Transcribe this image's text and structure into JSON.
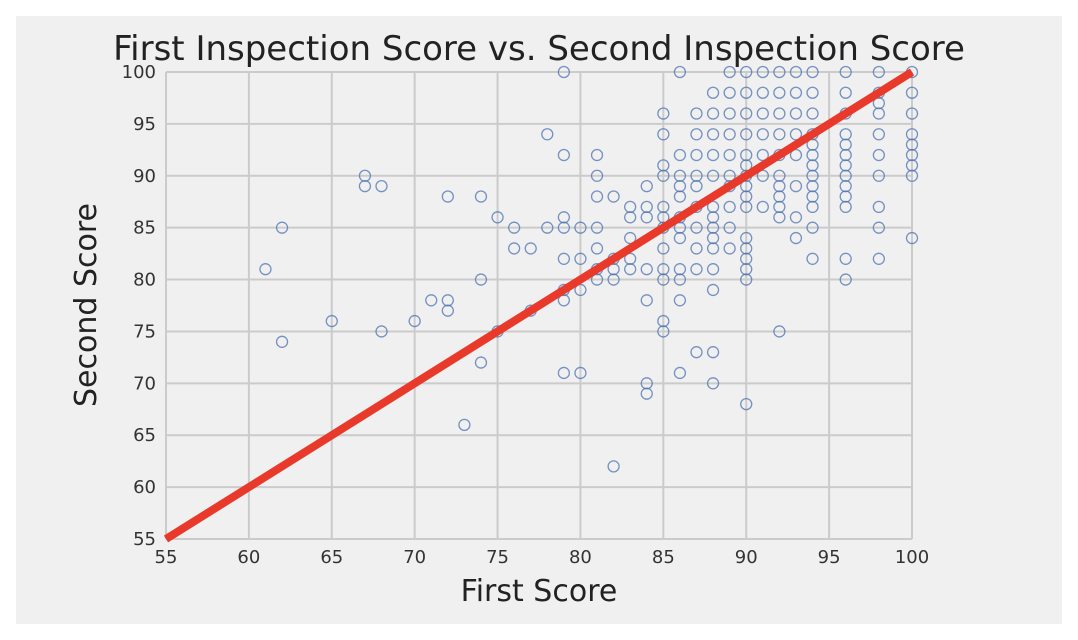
{
  "chart_data": {
    "type": "scatter",
    "title": "First Inspection Score vs. Second Inspection Score",
    "xlabel": "First Score",
    "ylabel": "Second Score",
    "xlim": [
      55,
      100
    ],
    "ylim": [
      55,
      100
    ],
    "xticks": [
      "55",
      "60",
      "65",
      "70",
      "75",
      "80",
      "85",
      "90",
      "95",
      "100"
    ],
    "yticks": [
      "55",
      "60",
      "65",
      "70",
      "75",
      "80",
      "85",
      "90",
      "95",
      "100"
    ],
    "grid": true,
    "marker_color": "#4c72b0",
    "line_color": "#e8392a",
    "background_color": "#f0f0f0",
    "reference_line": {
      "x": [
        55,
        100
      ],
      "y": [
        55,
        100
      ]
    },
    "series": [
      {
        "points": [
          [
            61,
            81
          ],
          [
            62,
            85
          ],
          [
            62,
            74
          ],
          [
            65,
            76
          ],
          [
            67,
            90
          ],
          [
            67,
            89
          ],
          [
            68,
            89
          ],
          [
            68,
            75
          ],
          [
            70,
            76
          ],
          [
            71,
            78
          ],
          [
            72,
            78
          ],
          [
            72,
            77
          ],
          [
            72,
            88
          ],
          [
            73,
            66
          ],
          [
            74,
            88
          ],
          [
            74,
            80
          ],
          [
            74,
            72
          ],
          [
            75,
            86
          ],
          [
            75,
            75
          ],
          [
            76,
            85
          ],
          [
            76,
            83
          ],
          [
            77,
            83
          ],
          [
            77,
            77
          ],
          [
            78,
            94
          ],
          [
            78,
            85
          ],
          [
            79,
            100
          ],
          [
            79,
            92
          ],
          [
            79,
            86
          ],
          [
            79,
            85
          ],
          [
            79,
            82
          ],
          [
            79,
            79
          ],
          [
            79,
            78
          ],
          [
            79,
            71
          ],
          [
            80,
            85
          ],
          [
            80,
            82
          ],
          [
            80,
            79
          ],
          [
            80,
            71
          ],
          [
            81,
            92
          ],
          [
            81,
            90
          ],
          [
            81,
            88
          ],
          [
            81,
            85
          ],
          [
            81,
            83
          ],
          [
            81,
            81
          ],
          [
            81,
            80
          ],
          [
            82,
            88
          ],
          [
            82,
            82
          ],
          [
            82,
            81
          ],
          [
            82,
            80
          ],
          [
            82,
            62
          ],
          [
            83,
            87
          ],
          [
            83,
            86
          ],
          [
            83,
            84
          ],
          [
            83,
            82
          ],
          [
            83,
            81
          ],
          [
            84,
            89
          ],
          [
            84,
            87
          ],
          [
            84,
            86
          ],
          [
            84,
            81
          ],
          [
            84,
            78
          ],
          [
            84,
            70
          ],
          [
            84,
            69
          ],
          [
            85,
            96
          ],
          [
            85,
            94
          ],
          [
            85,
            91
          ],
          [
            85,
            90
          ],
          [
            85,
            87
          ],
          [
            85,
            86
          ],
          [
            85,
            85
          ],
          [
            85,
            83
          ],
          [
            85,
            81
          ],
          [
            85,
            80
          ],
          [
            85,
            76
          ],
          [
            85,
            75
          ],
          [
            86,
            100
          ],
          [
            86,
            92
          ],
          [
            86,
            90
          ],
          [
            86,
            89
          ],
          [
            86,
            88
          ],
          [
            86,
            86
          ],
          [
            86,
            85
          ],
          [
            86,
            84
          ],
          [
            86,
            81
          ],
          [
            86,
            80
          ],
          [
            86,
            78
          ],
          [
            86,
            71
          ],
          [
            87,
            96
          ],
          [
            87,
            94
          ],
          [
            87,
            92
          ],
          [
            87,
            90
          ],
          [
            87,
            89
          ],
          [
            87,
            87
          ],
          [
            87,
            85
          ],
          [
            87,
            83
          ],
          [
            87,
            81
          ],
          [
            87,
            73
          ],
          [
            88,
            98
          ],
          [
            88,
            96
          ],
          [
            88,
            94
          ],
          [
            88,
            92
          ],
          [
            88,
            90
          ],
          [
            88,
            87
          ],
          [
            88,
            86
          ],
          [
            88,
            85
          ],
          [
            88,
            84
          ],
          [
            88,
            83
          ],
          [
            88,
            81
          ],
          [
            88,
            79
          ],
          [
            88,
            73
          ],
          [
            88,
            70
          ],
          [
            89,
            100
          ],
          [
            89,
            98
          ],
          [
            89,
            96
          ],
          [
            89,
            94
          ],
          [
            89,
            92
          ],
          [
            89,
            90
          ],
          [
            89,
            89
          ],
          [
            89,
            87
          ],
          [
            89,
            85
          ],
          [
            89,
            83
          ],
          [
            90,
            100
          ],
          [
            90,
            98
          ],
          [
            90,
            96
          ],
          [
            90,
            94
          ],
          [
            90,
            92
          ],
          [
            90,
            91
          ],
          [
            90,
            90
          ],
          [
            90,
            89
          ],
          [
            90,
            88
          ],
          [
            90,
            87
          ],
          [
            90,
            84
          ],
          [
            90,
            83
          ],
          [
            90,
            82
          ],
          [
            90,
            81
          ],
          [
            90,
            80
          ],
          [
            90,
            68
          ],
          [
            91,
            100
          ],
          [
            91,
            98
          ],
          [
            91,
            96
          ],
          [
            91,
            94
          ],
          [
            91,
            92
          ],
          [
            91,
            90
          ],
          [
            91,
            87
          ],
          [
            92,
            100
          ],
          [
            92,
            98
          ],
          [
            92,
            96
          ],
          [
            92,
            94
          ],
          [
            92,
            92
          ],
          [
            92,
            90
          ],
          [
            92,
            89
          ],
          [
            92,
            88
          ],
          [
            92,
            87
          ],
          [
            92,
            86
          ],
          [
            92,
            75
          ],
          [
            93,
            100
          ],
          [
            93,
            98
          ],
          [
            93,
            96
          ],
          [
            93,
            94
          ],
          [
            93,
            92
          ],
          [
            93,
            89
          ],
          [
            93,
            86
          ],
          [
            93,
            84
          ],
          [
            94,
            100
          ],
          [
            94,
            98
          ],
          [
            94,
            96
          ],
          [
            94,
            94
          ],
          [
            94,
            93
          ],
          [
            94,
            92
          ],
          [
            94,
            91
          ],
          [
            94,
            90
          ],
          [
            94,
            89
          ],
          [
            94,
            88
          ],
          [
            94,
            87
          ],
          [
            94,
            85
          ],
          [
            94,
            82
          ],
          [
            96,
            100
          ],
          [
            96,
            98
          ],
          [
            96,
            96
          ],
          [
            96,
            94
          ],
          [
            96,
            93
          ],
          [
            96,
            92
          ],
          [
            96,
            91
          ],
          [
            96,
            90
          ],
          [
            96,
            89
          ],
          [
            96,
            88
          ],
          [
            96,
            87
          ],
          [
            96,
            82
          ],
          [
            96,
            80
          ],
          [
            98,
            100
          ],
          [
            98,
            98
          ],
          [
            98,
            97
          ],
          [
            98,
            96
          ],
          [
            98,
            94
          ],
          [
            98,
            92
          ],
          [
            98,
            90
          ],
          [
            98,
            87
          ],
          [
            98,
            85
          ],
          [
            98,
            82
          ],
          [
            100,
            100
          ],
          [
            100,
            98
          ],
          [
            100,
            96
          ],
          [
            100,
            94
          ],
          [
            100,
            93
          ],
          [
            100,
            92
          ],
          [
            100,
            91
          ],
          [
            100,
            90
          ],
          [
            100,
            84
          ]
        ]
      }
    ]
  }
}
